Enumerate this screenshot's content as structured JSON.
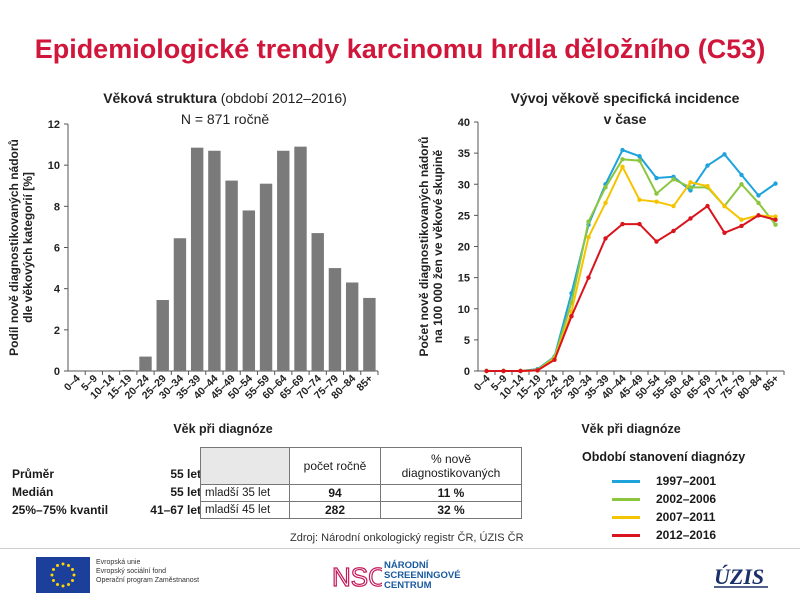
{
  "title": "Epidemiologické trendy karcinomu hrdla děložního (C53)",
  "left_chart_title_bold": "Věková struktura",
  "left_chart_title_light": "(období 2012–2016)",
  "left_chart_subtitle": "N = 871 ročně",
  "right_chart_title_line1": "Vývoj věkově specifická incidence",
  "right_chart_title_line2": "v čase",
  "stats": {
    "mean_label": "Průměr",
    "mean_value": "55 let",
    "median_label": "Medián",
    "median_value": "55 let",
    "iqr_label": "25%–75% kvantil",
    "iqr_value": "41–67 let"
  },
  "ratio_table": {
    "col1_header": "počet ročně",
    "col2_header": "% nově diagnostikovaných",
    "rows": [
      {
        "label": "mladší 35 let",
        "count": "94",
        "pct": "11 %"
      },
      {
        "label": "mladší 45 let",
        "count": "282",
        "pct": "32 %"
      }
    ]
  },
  "source": "Zdroj: Národní onkologický registr ČR, ÚZIS ČR",
  "footer": {
    "eu_line1": "Evropská unie",
    "eu_line2": "Evropský sociální fond",
    "eu_line3": "Operační program Zaměstnanost",
    "nsc_mark": "NSC",
    "nsc_line1": "NÁRODNÍ",
    "nsc_line2": "SCREENINGOVÉ",
    "nsc_line3": "CENTRUM",
    "uzis_mark": "ÚZIS"
  },
  "colors": {
    "title": "#d0163a",
    "bar": "#7a7a7a",
    "s1": "#1ea3dc",
    "s2": "#8cc63f",
    "s3": "#f5c400",
    "s4": "#d9141d"
  },
  "chart_data": [
    {
      "type": "bar",
      "categories": [
        "0–4",
        "5–9",
        "10–14",
        "15–19",
        "20–24",
        "25–29",
        "30–34",
        "35–39",
        "40–44",
        "45–49",
        "50–54",
        "55–59",
        "60–64",
        "65–69",
        "70–74",
        "75–79",
        "80–84",
        "85+"
      ],
      "values": [
        0,
        0,
        0,
        0.05,
        0.7,
        3.45,
        6.45,
        10.85,
        10.7,
        9.25,
        7.8,
        9.1,
        10.7,
        10.9,
        6.7,
        5.0,
        4.3,
        3.55
      ],
      "xlabel": "Věk při diagnóze",
      "ylabel_line1": "Podíl nově diagnostikovaných nádorů",
      "ylabel_line2": "dle věkových kategorií [%]",
      "ylim": [
        0,
        12
      ],
      "yticks": [
        "0",
        "2",
        "4",
        "6",
        "8",
        "10",
        "12"
      ]
    },
    {
      "type": "line",
      "categories": [
        "0–4",
        "5–9",
        "10–14",
        "15–19",
        "20–24",
        "25–29",
        "30–34",
        "35–39",
        "40–44",
        "45–49",
        "50–54",
        "55–59",
        "60–64",
        "65–69",
        "70–74",
        "75–79",
        "80–84",
        "85+"
      ],
      "xlabel": "Věk při diagnóze",
      "ylabel_line1": "Počet nově diagnostikovaných nádorů",
      "ylabel_line2": "na 100 000 žen ve věkové skupině",
      "ylim": [
        0,
        40
      ],
      "yticks": [
        "0",
        "5",
        "10",
        "15",
        "20",
        "25",
        "30",
        "35",
        "40"
      ],
      "legend_title": "Období stanovení diagnózy",
      "series": [
        {
          "name": "1997–2001",
          "color": "#1ea3dc",
          "values": [
            0,
            0,
            0,
            0.3,
            2.3,
            12.5,
            23.5,
            30,
            35.5,
            34.5,
            31,
            31.2,
            29,
            33,
            34.8,
            31.5,
            28.2,
            30.1
          ]
        },
        {
          "name": "2002–2006",
          "color": "#8cc63f",
          "values": [
            0,
            0,
            0,
            0.2,
            2.2,
            11,
            24,
            29.5,
            34,
            33.8,
            28.5,
            30.8,
            29.5,
            29.5,
            26.5,
            30,
            27,
            23.5
          ]
        },
        {
          "name": "2007–2011",
          "color": "#f5c400",
          "values": [
            0,
            0,
            0,
            0.1,
            2,
            9.5,
            21.5,
            27,
            32.8,
            27.5,
            27.2,
            26.5,
            30.3,
            29.7,
            26.5,
            24.3,
            25,
            24.8
          ]
        },
        {
          "name": "2012–2016",
          "color": "#d9141d",
          "values": [
            0,
            0,
            0,
            0.1,
            1.8,
            8.8,
            15,
            21.3,
            23.6,
            23.6,
            20.8,
            22.5,
            24.5,
            26.5,
            22.2,
            23.3,
            25,
            24.3
          ]
        }
      ]
    }
  ]
}
